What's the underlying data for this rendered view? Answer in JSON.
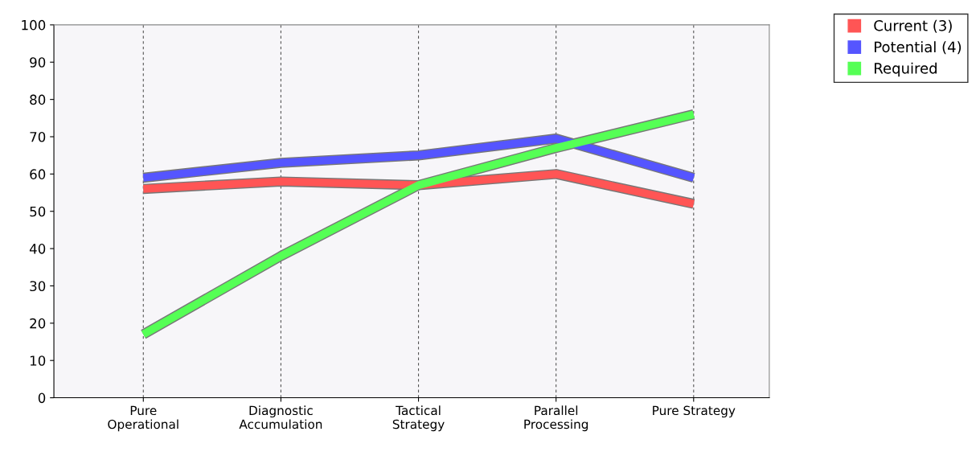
{
  "chart_data": {
    "type": "line",
    "categories": [
      "Pure\nOperational",
      "Diagnostic\nAccumulation",
      "Tactical\nStrategy",
      "Parallel\nProcessing",
      "Pure Strategy"
    ],
    "series": [
      {
        "name": "Current (3)",
        "color": "#ff5555",
        "values": [
          56,
          58,
          57,
          60,
          52
        ]
      },
      {
        "name": "Potential (4)",
        "color": "#5555ff",
        "values": [
          59,
          63,
          65,
          69.5,
          59
        ]
      },
      {
        "name": "Required",
        "color": "#55ff55",
        "values": [
          17,
          38,
          57,
          67,
          76
        ]
      }
    ],
    "ylim": [
      0,
      100
    ],
    "yticks": [
      0,
      10,
      20,
      30,
      40,
      50,
      60,
      70,
      80,
      90,
      100
    ],
    "grid": "x",
    "legend": "top right",
    "line_style": "solid",
    "marker": "none"
  }
}
